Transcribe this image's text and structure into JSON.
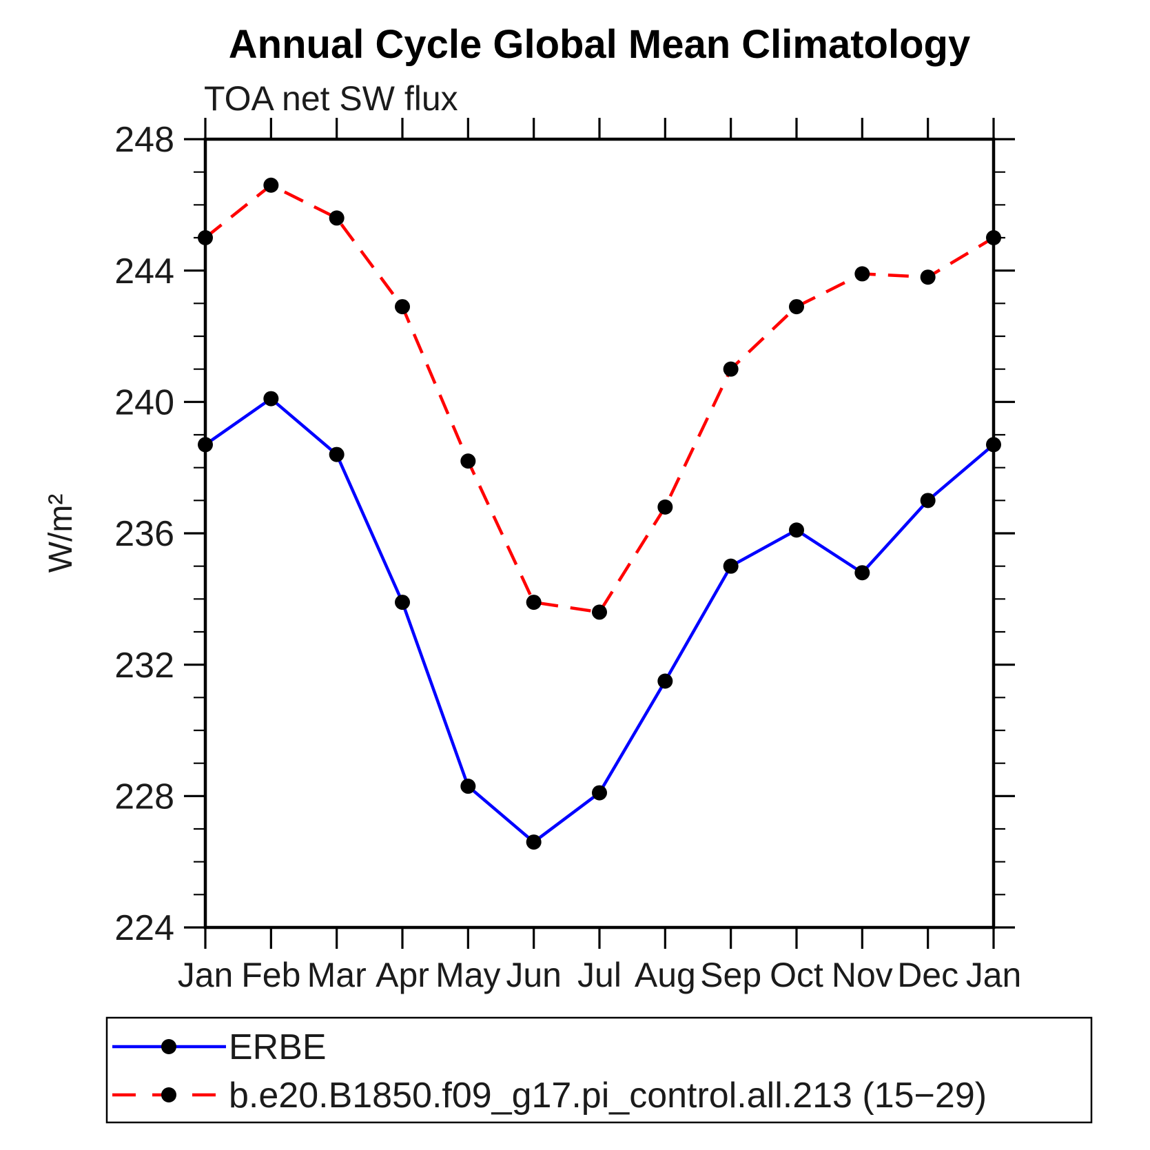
{
  "page": {
    "background": "#ffffff"
  },
  "chart_data": {
    "type": "line",
    "title": "Annual Cycle Global Mean Climatology",
    "subtitle": "TOA net SW flux",
    "xlabel": "",
    "ylabel": "W/m²",
    "categories": [
      "Jan",
      "Feb",
      "Mar",
      "Apr",
      "May",
      "Jun",
      "Jul",
      "Aug",
      "Sep",
      "Oct",
      "Nov",
      "Dec",
      "Jan"
    ],
    "ylim": [
      224,
      248
    ],
    "yticks_major": [
      224,
      228,
      232,
      236,
      240,
      244,
      248
    ],
    "ytick_minor_step": 1,
    "grid": "off",
    "legend_position": "bottom-left-box",
    "series": [
      {
        "name": "ERBE",
        "color": "#0000ff",
        "line_style": "solid",
        "marker": "filled-circle",
        "marker_color": "#000000",
        "values": [
          238.7,
          240.1,
          238.4,
          233.9,
          228.3,
          226.6,
          228.1,
          231.5,
          235.0,
          236.1,
          234.8,
          237.0,
          238.7
        ]
      },
      {
        "name": "b.e20.B1850.f09_g17.pi_control.all.213 (15−29)",
        "color": "#ff0000",
        "line_style": "dashed",
        "marker": "filled-circle",
        "marker_color": "#000000",
        "values": [
          245.0,
          246.6,
          245.6,
          242.9,
          238.2,
          233.9,
          233.6,
          236.8,
          241.0,
          242.9,
          243.9,
          243.8,
          245.0
        ]
      }
    ]
  }
}
